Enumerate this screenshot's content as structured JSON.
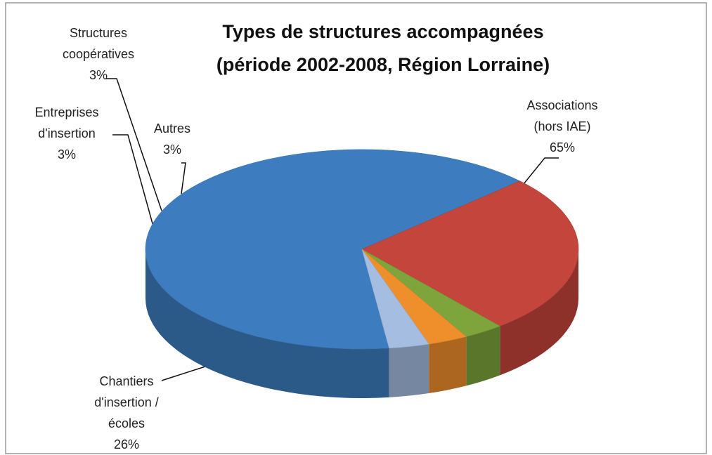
{
  "chart_data": {
    "type": "pie",
    "title": "Types de structures accompagnées",
    "subtitle": "(période 2002-2008, Région Lorraine)",
    "categories": [
      "Associations (hors IAE)",
      "Chantiers d'insertion / écoles",
      "Entreprises d'insertion",
      "Structures coopératives",
      "Autres"
    ],
    "values": [
      65,
      26,
      3,
      3,
      3
    ],
    "value_labels": [
      "65%",
      "26%",
      "3%",
      "3%",
      "3%"
    ],
    "colors": [
      "#3d7dbf",
      "#c4453b",
      "#7da53c",
      "#ef8f2c",
      "#a4bde0"
    ]
  }
}
